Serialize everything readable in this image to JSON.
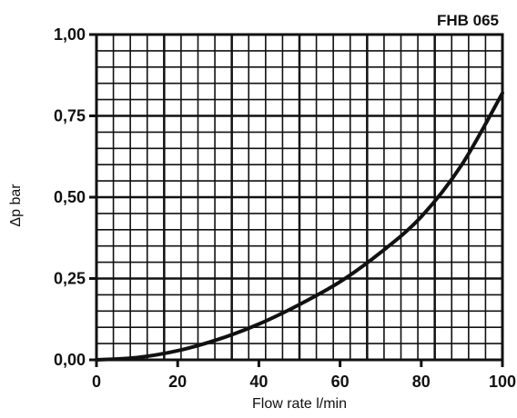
{
  "chart_data": {
    "type": "line",
    "title": "FHB 065",
    "xlabel": "Flow rate l/min",
    "ylabel": "Δp bar",
    "xlim": [
      0,
      100
    ],
    "ylim": [
      0,
      1
    ],
    "x_ticks": [
      "0",
      "20",
      "40",
      "60",
      "80",
      "100"
    ],
    "y_ticks": [
      "0,00",
      "0,25",
      "0,50",
      "0,75",
      "1,00"
    ],
    "grid": true,
    "series": [
      {
        "x": [
          0,
          10,
          20,
          30,
          40,
          50,
          60,
          70,
          80,
          90,
          100
        ],
        "y": [
          0.0,
          0.007,
          0.028,
          0.063,
          0.11,
          0.17,
          0.24,
          0.33,
          0.44,
          0.6,
          0.82
        ]
      }
    ]
  },
  "colors": {
    "grid": "#111111",
    "curve": "#111111",
    "background": "#ffffff"
  }
}
